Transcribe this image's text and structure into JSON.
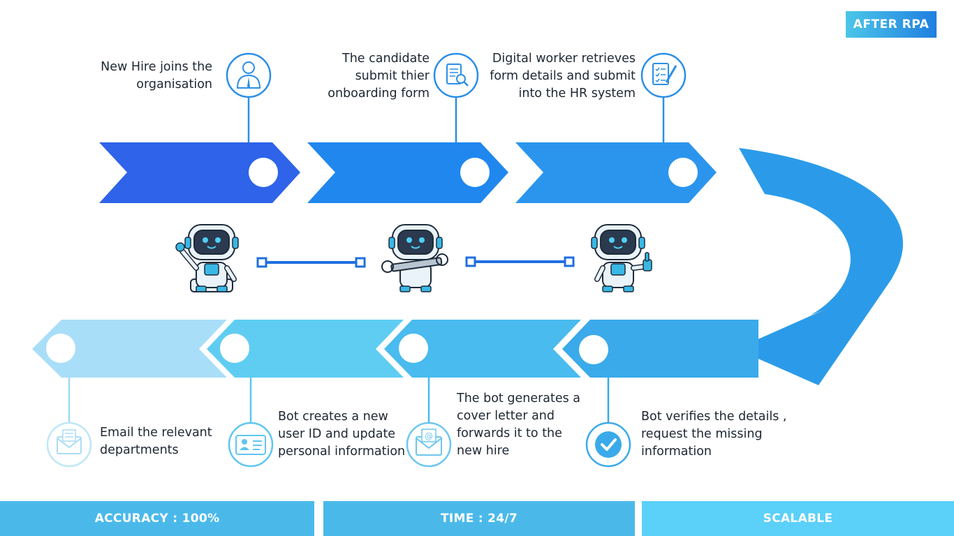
{
  "badge": "AFTER RPA",
  "top_steps": [
    {
      "text_lines": [
        "New Hire joins the",
        "organisation"
      ],
      "icon": "employee-icon"
    },
    {
      "text_lines": [
        "The candidate",
        "submit thier",
        "onboarding form"
      ],
      "icon": "document-search-icon"
    },
    {
      "text_lines": [
        "Digital worker retrieves",
        "form details and submit",
        "into the HR system"
      ],
      "icon": "checklist-pen-icon"
    }
  ],
  "bottom_steps": [
    {
      "text_lines": [
        "Email the relevant",
        "departments"
      ],
      "icon": "email-envelope-icon"
    },
    {
      "text_lines": [
        "Bot creates a new",
        "user ID and update",
        "personal information"
      ],
      "icon": "id-card-icon"
    },
    {
      "text_lines": [
        "The bot generates a",
        "cover letter and",
        "forwards it to the",
        "new hire"
      ],
      "icon": "at-envelope-icon"
    },
    {
      "text_lines": [
        "Bot verifies the details ,",
        "request the missing",
        "information"
      ],
      "icon": "check-circle-icon"
    }
  ],
  "footer": [
    {
      "label": "ACCURACY : 100%"
    },
    {
      "label": "TIME : 24/7"
    },
    {
      "label": "SCALABLE"
    }
  ],
  "colors": {
    "top_arrows": [
      "#2e63ea",
      "#1f87ee",
      "#2b95ee"
    ],
    "bottom_arrows": [
      "#a9def9",
      "#5fcdf2",
      "#49bbee",
      "#3aaaea"
    ],
    "curve_arrow": "#2b9be9",
    "footer": [
      "#4ab9ea",
      "#4ab9ea",
      "#5bd0f8"
    ],
    "icon_stroke": "#2b8fe6"
  }
}
